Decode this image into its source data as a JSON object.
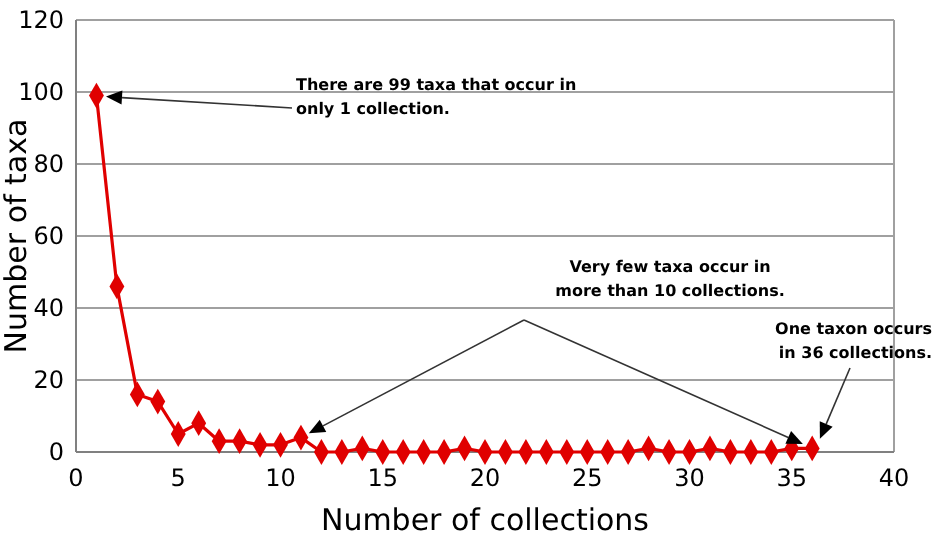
{
  "chart_data": {
    "type": "line",
    "xlabel": "Number of collections",
    "ylabel": "Number of taxa",
    "x": [
      1,
      2,
      3,
      4,
      5,
      6,
      7,
      8,
      9,
      10,
      11,
      12,
      13,
      14,
      15,
      16,
      17,
      18,
      19,
      20,
      21,
      22,
      23,
      24,
      25,
      26,
      27,
      28,
      29,
      30,
      31,
      32,
      33,
      34,
      35,
      36
    ],
    "series": [
      {
        "color": "#e00000",
        "values": [
          99,
          46,
          16,
          14,
          5,
          8,
          3,
          3,
          2,
          2,
          4,
          0,
          0,
          1,
          0,
          0,
          0,
          0,
          1,
          0,
          0,
          0,
          0,
          0,
          0,
          0,
          0,
          1,
          0,
          0,
          1,
          0,
          0,
          0,
          1,
          1
        ]
      }
    ],
    "xlim": [
      0,
      40
    ],
    "xticks": [
      0,
      5,
      10,
      15,
      20,
      25,
      30,
      35,
      40
    ],
    "ylim": [
      0,
      120
    ],
    "yticks": [
      0,
      20,
      40,
      60,
      80,
      100,
      120
    ],
    "grid": "y",
    "marker": "diamond",
    "line_style": "solid",
    "annotations": [
      "There are 99 taxa that occur in\nonly 1 collection.",
      "Very few taxa occur in\nmore than 10 collections.",
      "One taxon occurs\nin 36 collections."
    ]
  }
}
